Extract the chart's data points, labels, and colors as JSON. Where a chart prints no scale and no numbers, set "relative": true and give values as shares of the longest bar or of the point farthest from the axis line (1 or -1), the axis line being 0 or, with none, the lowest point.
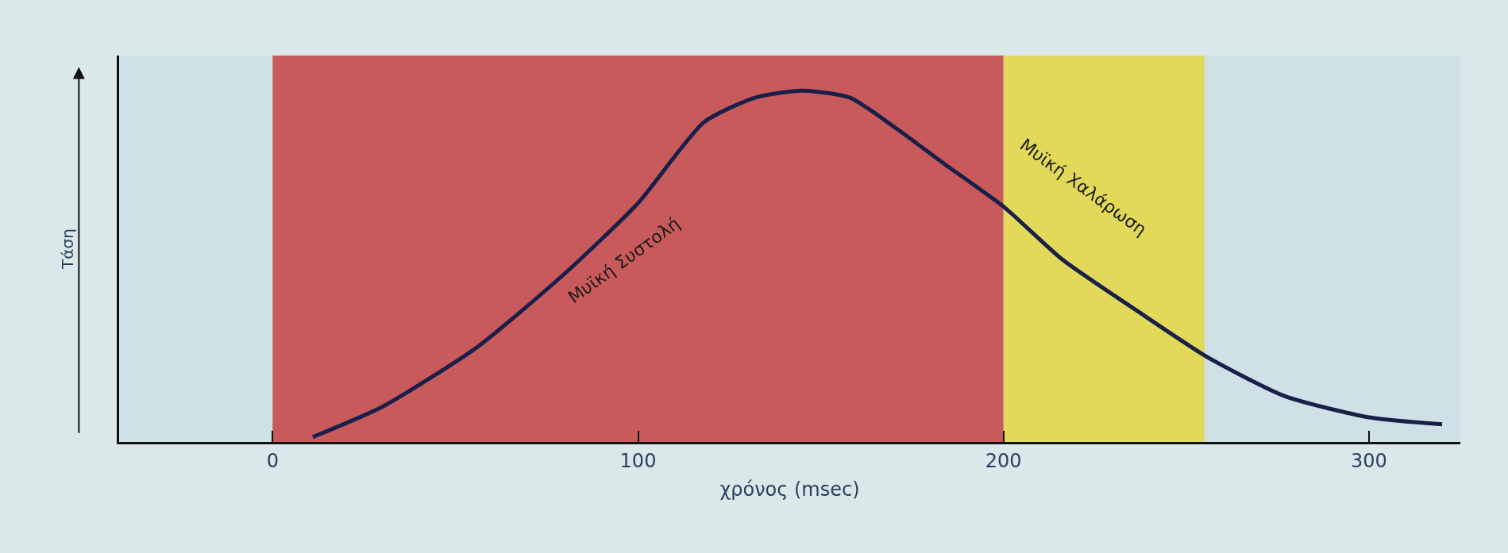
{
  "chart_data": {
    "type": "line",
    "relative": true,
    "xlabel": "χρόνος (msec)",
    "ylabel": "Τάση",
    "x": [
      11,
      30,
      56,
      80,
      100,
      118,
      132,
      145,
      158,
      171,
      184,
      200,
      216,
      237,
      256,
      277,
      300,
      320
    ],
    "series": [
      {
        "color": "#1a1f4a",
        "values": [
          0.014,
          0.1,
          0.27,
          0.48,
          0.68,
          0.91,
          0.98,
          1.0,
          0.98,
          0.89,
          0.79,
          0.67,
          0.52,
          0.37,
          0.24,
          0.13,
          0.07,
          0.05
        ]
      }
    ],
    "xlim": [
      -42,
      325
    ],
    "xticks": [
      0,
      100,
      200,
      300
    ],
    "bands": [
      {
        "axis": "x",
        "from": 0,
        "to": 200,
        "color": "#c95a5b"
      },
      {
        "axis": "x",
        "from": 200,
        "to": 255,
        "color": "#e2d95a"
      }
    ],
    "annotations": [
      "Μυϊκή Συστολή",
      "Μυϊκή Χαλάρωση"
    ],
    "grid": false,
    "legend": false,
    "marker": "none",
    "line_style": "solid"
  }
}
